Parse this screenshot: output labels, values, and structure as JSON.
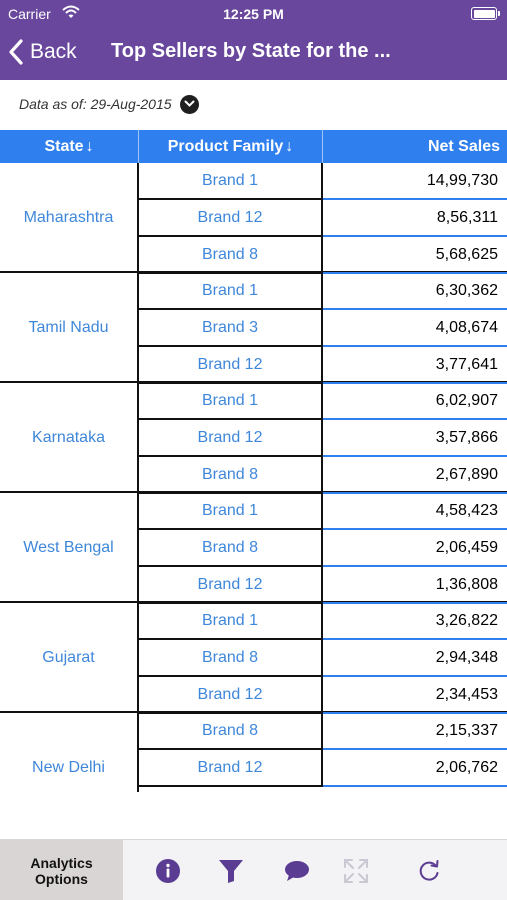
{
  "status_bar": {
    "carrier": "Carrier",
    "time": "12:25 PM"
  },
  "nav": {
    "back_label": "Back",
    "title": "Top Sellers by State for the ..."
  },
  "data_as_of": "Data as of: 29-Aug-2015",
  "table": {
    "headers": {
      "state": "State",
      "product_family": "Product Family",
      "net_sales": "Net Sales",
      "sort_glyph": "↓"
    },
    "groups": [
      {
        "state": "Maharashtra",
        "rows": [
          {
            "family": "Brand 1",
            "sales": "14,99,730"
          },
          {
            "family": "Brand 12",
            "sales": "8,56,311"
          },
          {
            "family": "Brand 8",
            "sales": "5,68,625"
          }
        ]
      },
      {
        "state": "Tamil Nadu",
        "rows": [
          {
            "family": "Brand 1",
            "sales": "6,30,362"
          },
          {
            "family": "Brand 3",
            "sales": "4,08,674"
          },
          {
            "family": "Brand 12",
            "sales": "3,77,641"
          }
        ]
      },
      {
        "state": "Karnataka",
        "rows": [
          {
            "family": "Brand 1",
            "sales": "6,02,907"
          },
          {
            "family": "Brand 12",
            "sales": "3,57,866"
          },
          {
            "family": "Brand 8",
            "sales": "2,67,890"
          }
        ]
      },
      {
        "state": "West Bengal",
        "rows": [
          {
            "family": "Brand 1",
            "sales": "4,58,423"
          },
          {
            "family": "Brand 8",
            "sales": "2,06,459"
          },
          {
            "family": "Brand 12",
            "sales": "1,36,808"
          }
        ]
      },
      {
        "state": "Gujarat",
        "rows": [
          {
            "family": "Brand 1",
            "sales": "3,26,822"
          },
          {
            "family": "Brand 8",
            "sales": "2,94,348"
          },
          {
            "family": "Brand 12",
            "sales": "2,34,453"
          }
        ]
      },
      {
        "state": "New Delhi",
        "rows": [
          {
            "family": "Brand 8",
            "sales": "2,15,337"
          },
          {
            "family": "Brand 12",
            "sales": "2,06,762"
          }
        ]
      }
    ]
  },
  "toolbar": {
    "analytics_line1": "Analytics",
    "analytics_line2": "Options",
    "icons": [
      "info-icon",
      "filter-icon",
      "comment-icon",
      "expand-icon",
      "refresh-icon"
    ]
  },
  "colors": {
    "header_bg": "#68479d",
    "table_header_bg": "#2f7fee",
    "link_text": "#3f87da",
    "icon_purple": "#5b3c93",
    "icon_disabled": "#c9c9d4"
  }
}
